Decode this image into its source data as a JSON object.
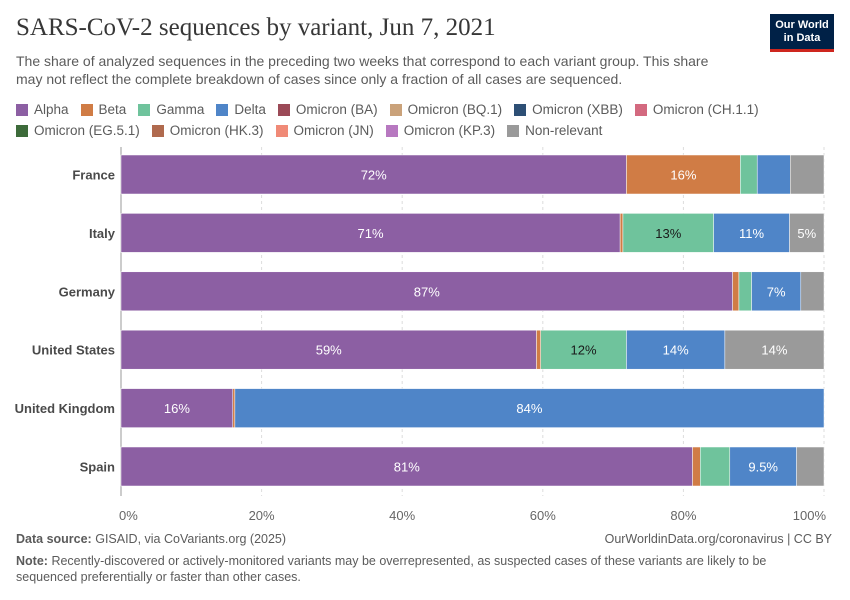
{
  "header": {
    "title": "SARS-CoV-2 sequences by variant, Jun 7, 2021",
    "subtitle": "The share of analyzed sequences in the preceding two weeks that correspond to each variant group. This share may not reflect the complete breakdown of cases since only a fraction of all cases are sequenced.",
    "logo_line1": "Our World",
    "logo_line2": "in Data"
  },
  "legend": [
    {
      "label": "Alpha",
      "color": "#8c5fa3"
    },
    {
      "label": "Beta",
      "color": "#d07c45"
    },
    {
      "label": "Gamma",
      "color": "#6fc39c"
    },
    {
      "label": "Delta",
      "color": "#4f85c8"
    },
    {
      "label": "Omicron (BA)",
      "color": "#9b4a57"
    },
    {
      "label": "Omicron (BQ.1)",
      "color": "#caa27a"
    },
    {
      "label": "Omicron (XBB)",
      "color": "#2d4f75"
    },
    {
      "label": "Omicron (CH.1.1)",
      "color": "#d3697f"
    },
    {
      "label": "Omicron (EG.5.1)",
      "color": "#3d6b3a"
    },
    {
      "label": "Omicron (HK.3)",
      "color": "#b06a4e"
    },
    {
      "label": "Omicron (JN)",
      "color": "#f08a77"
    },
    {
      "label": "Omicron (KP.3)",
      "color": "#b778c0"
    },
    {
      "label": "Non-relevant",
      "color": "#9a9a9a"
    }
  ],
  "chart_data": {
    "type": "bar",
    "orientation": "horizontal",
    "stacked": true,
    "title": "SARS-CoV-2 sequences by variant, Jun 7, 2021",
    "categories": [
      "France",
      "Italy",
      "Germany",
      "United States",
      "United Kingdom",
      "Spain"
    ],
    "xlim": [
      0,
      100
    ],
    "x_ticks": [
      "0%",
      "20%",
      "40%",
      "60%",
      "80%",
      "100%"
    ],
    "series": [
      {
        "name": "Alpha",
        "color": "#8c5fa3",
        "values": [
          71.9,
          71.0,
          87.0,
          59.1,
          15.9,
          81.3
        ],
        "labels": [
          "72%",
          "71%",
          "87%",
          "59%",
          "16%",
          "81%"
        ]
      },
      {
        "name": "Beta",
        "color": "#d07c45",
        "values": [
          16.2,
          0.4,
          0.9,
          0.6,
          0.3,
          1.1
        ],
        "labels": [
          "16%",
          "",
          "",
          "",
          "",
          ""
        ]
      },
      {
        "name": "Gamma",
        "color": "#6fc39c",
        "values": [
          2.4,
          12.9,
          1.8,
          12.2,
          0.0,
          4.2
        ],
        "labels": [
          "",
          "13%",
          "",
          "12%",
          "",
          ""
        ]
      },
      {
        "name": "Delta",
        "color": "#4f85c8",
        "values": [
          4.7,
          10.8,
          7.0,
          14.0,
          83.8,
          9.5
        ],
        "labels": [
          "",
          "11%",
          "7%",
          "14%",
          "84%",
          "9.5%"
        ]
      },
      {
        "name": "Non-relevant",
        "color": "#9a9a9a",
        "values": [
          4.8,
          4.9,
          3.3,
          14.1,
          0.0,
          3.9
        ],
        "labels": [
          "",
          "5%",
          "",
          "14%",
          "",
          ""
        ]
      }
    ],
    "label_colors": {
      "Gamma": "#1a1a1a"
    }
  },
  "footer": {
    "source_label": "Data source:",
    "source_text": "GISAID, via CoVariants.org (2025)",
    "url": "OurWorldinData.org/coronavirus | CC BY",
    "note_label": "Note:",
    "note_text": "Recently-discovered or actively-monitored variants may be overrepresented, as suspected cases of these variants are likely to be sequenced preferentially or faster than other cases."
  }
}
